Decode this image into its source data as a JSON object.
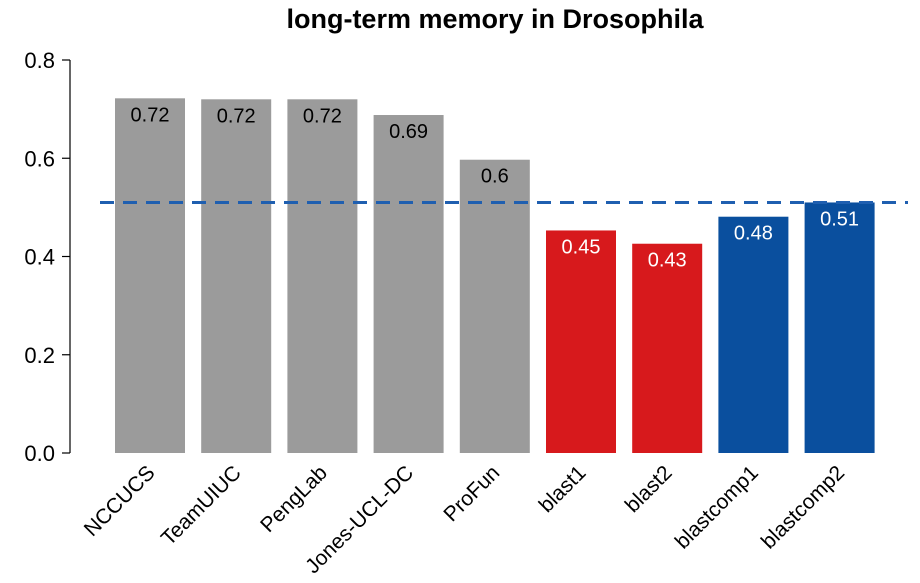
{
  "chart_data": {
    "type": "bar",
    "title": "long-term memory in Drosophila",
    "xlabel": "",
    "ylabel": "",
    "ylim": [
      0,
      0.8
    ],
    "yticks": [
      {
        "value": 0.0,
        "label": "0.0"
      },
      {
        "value": 0.2,
        "label": "0.2"
      },
      {
        "value": 0.4,
        "label": "0.4"
      },
      {
        "value": 0.6,
        "label": "0.6"
      },
      {
        "value": 0.8,
        "label": "0.8"
      }
    ],
    "categories": [
      "NCCUCS",
      "TeamUIUC",
      "PengLab",
      "Jones-UCL-DC",
      "ProFun",
      "blast1",
      "blast2",
      "blastcomp1",
      "blastcomp2"
    ],
    "values": [
      0.722,
      0.72,
      0.72,
      0.688,
      0.597,
      0.453,
      0.426,
      0.481,
      0.51
    ],
    "value_labels": [
      "0.72",
      "0.72",
      "0.72",
      "0.69",
      "0.6",
      "0.45",
      "0.43",
      "0.48",
      "0.51"
    ],
    "bar_colors": [
      "#9b9b9b",
      "#9b9b9b",
      "#9b9b9b",
      "#9b9b9b",
      "#9b9b9b",
      "#d7191c",
      "#d7191c",
      "#0a4f9e",
      "#0a4f9e"
    ],
    "label_colors": [
      "#000000",
      "#000000",
      "#000000",
      "#000000",
      "#000000",
      "#ffffff",
      "#ffffff",
      "#ffffff",
      "#ffffff"
    ],
    "reference_line": {
      "value": 0.51,
      "color": "#1f5fb0",
      "style": "dashed"
    },
    "grid": false,
    "legend": "none"
  }
}
